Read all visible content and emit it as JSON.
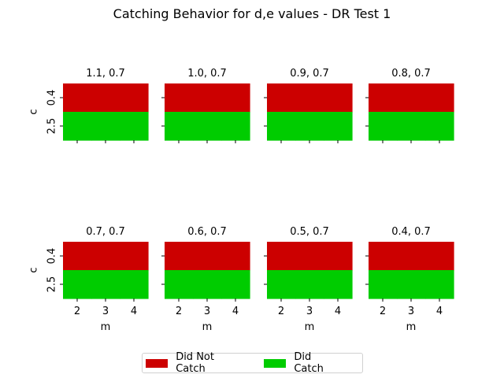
{
  "chart_data": {
    "type": "heatmap",
    "title": "Catching Behavior for d,e values - DR Test 1",
    "x_label": "m",
    "y_label": "c",
    "x_ticks": [
      "2",
      "3",
      "4"
    ],
    "y_ticks": [
      "0.4",
      "2.5"
    ],
    "colors": {
      "Did Not Catch": "#cc0000",
      "Did Catch": "#00cc00"
    },
    "legend": {
      "placement": "bottom-center",
      "entries": [
        "Did Not Catch",
        "Did Catch"
      ]
    },
    "panels": [
      {
        "title": "1.1, 0.7",
        "rows": [
          [
            "Did Not Catch",
            "Did Not Catch",
            "Did Not Catch"
          ],
          [
            "Did Catch",
            "Did Catch",
            "Did Catch"
          ]
        ]
      },
      {
        "title": "1.0, 0.7",
        "rows": [
          [
            "Did Not Catch",
            "Did Not Catch",
            "Did Not Catch"
          ],
          [
            "Did Catch",
            "Did Catch",
            "Did Catch"
          ]
        ]
      },
      {
        "title": "0.9, 0.7",
        "rows": [
          [
            "Did Not Catch",
            "Did Not Catch",
            "Did Not Catch"
          ],
          [
            "Did Catch",
            "Did Catch",
            "Did Catch"
          ]
        ]
      },
      {
        "title": "0.8, 0.7",
        "rows": [
          [
            "Did Not Catch",
            "Did Not Catch",
            "Did Not Catch"
          ],
          [
            "Did Catch",
            "Did Catch",
            "Did Catch"
          ]
        ]
      },
      {
        "title": "0.7, 0.7",
        "rows": [
          [
            "Did Not Catch",
            "Did Not Catch",
            "Did Not Catch"
          ],
          [
            "Did Catch",
            "Did Catch",
            "Did Catch"
          ]
        ]
      },
      {
        "title": "0.6, 0.7",
        "rows": [
          [
            "Did Not Catch",
            "Did Not Catch",
            "Did Not Catch"
          ],
          [
            "Did Catch",
            "Did Catch",
            "Did Catch"
          ]
        ]
      },
      {
        "title": "0.5, 0.7",
        "rows": [
          [
            "Did Not Catch",
            "Did Not Catch",
            "Did Not Catch"
          ],
          [
            "Did Catch",
            "Did Catch",
            "Did Catch"
          ]
        ]
      },
      {
        "title": "0.4, 0.7",
        "rows": [
          [
            "Did Not Catch",
            "Did Not Catch",
            "Did Not Catch"
          ],
          [
            "Did Catch",
            "Did Catch",
            "Did Catch"
          ]
        ]
      }
    ]
  }
}
